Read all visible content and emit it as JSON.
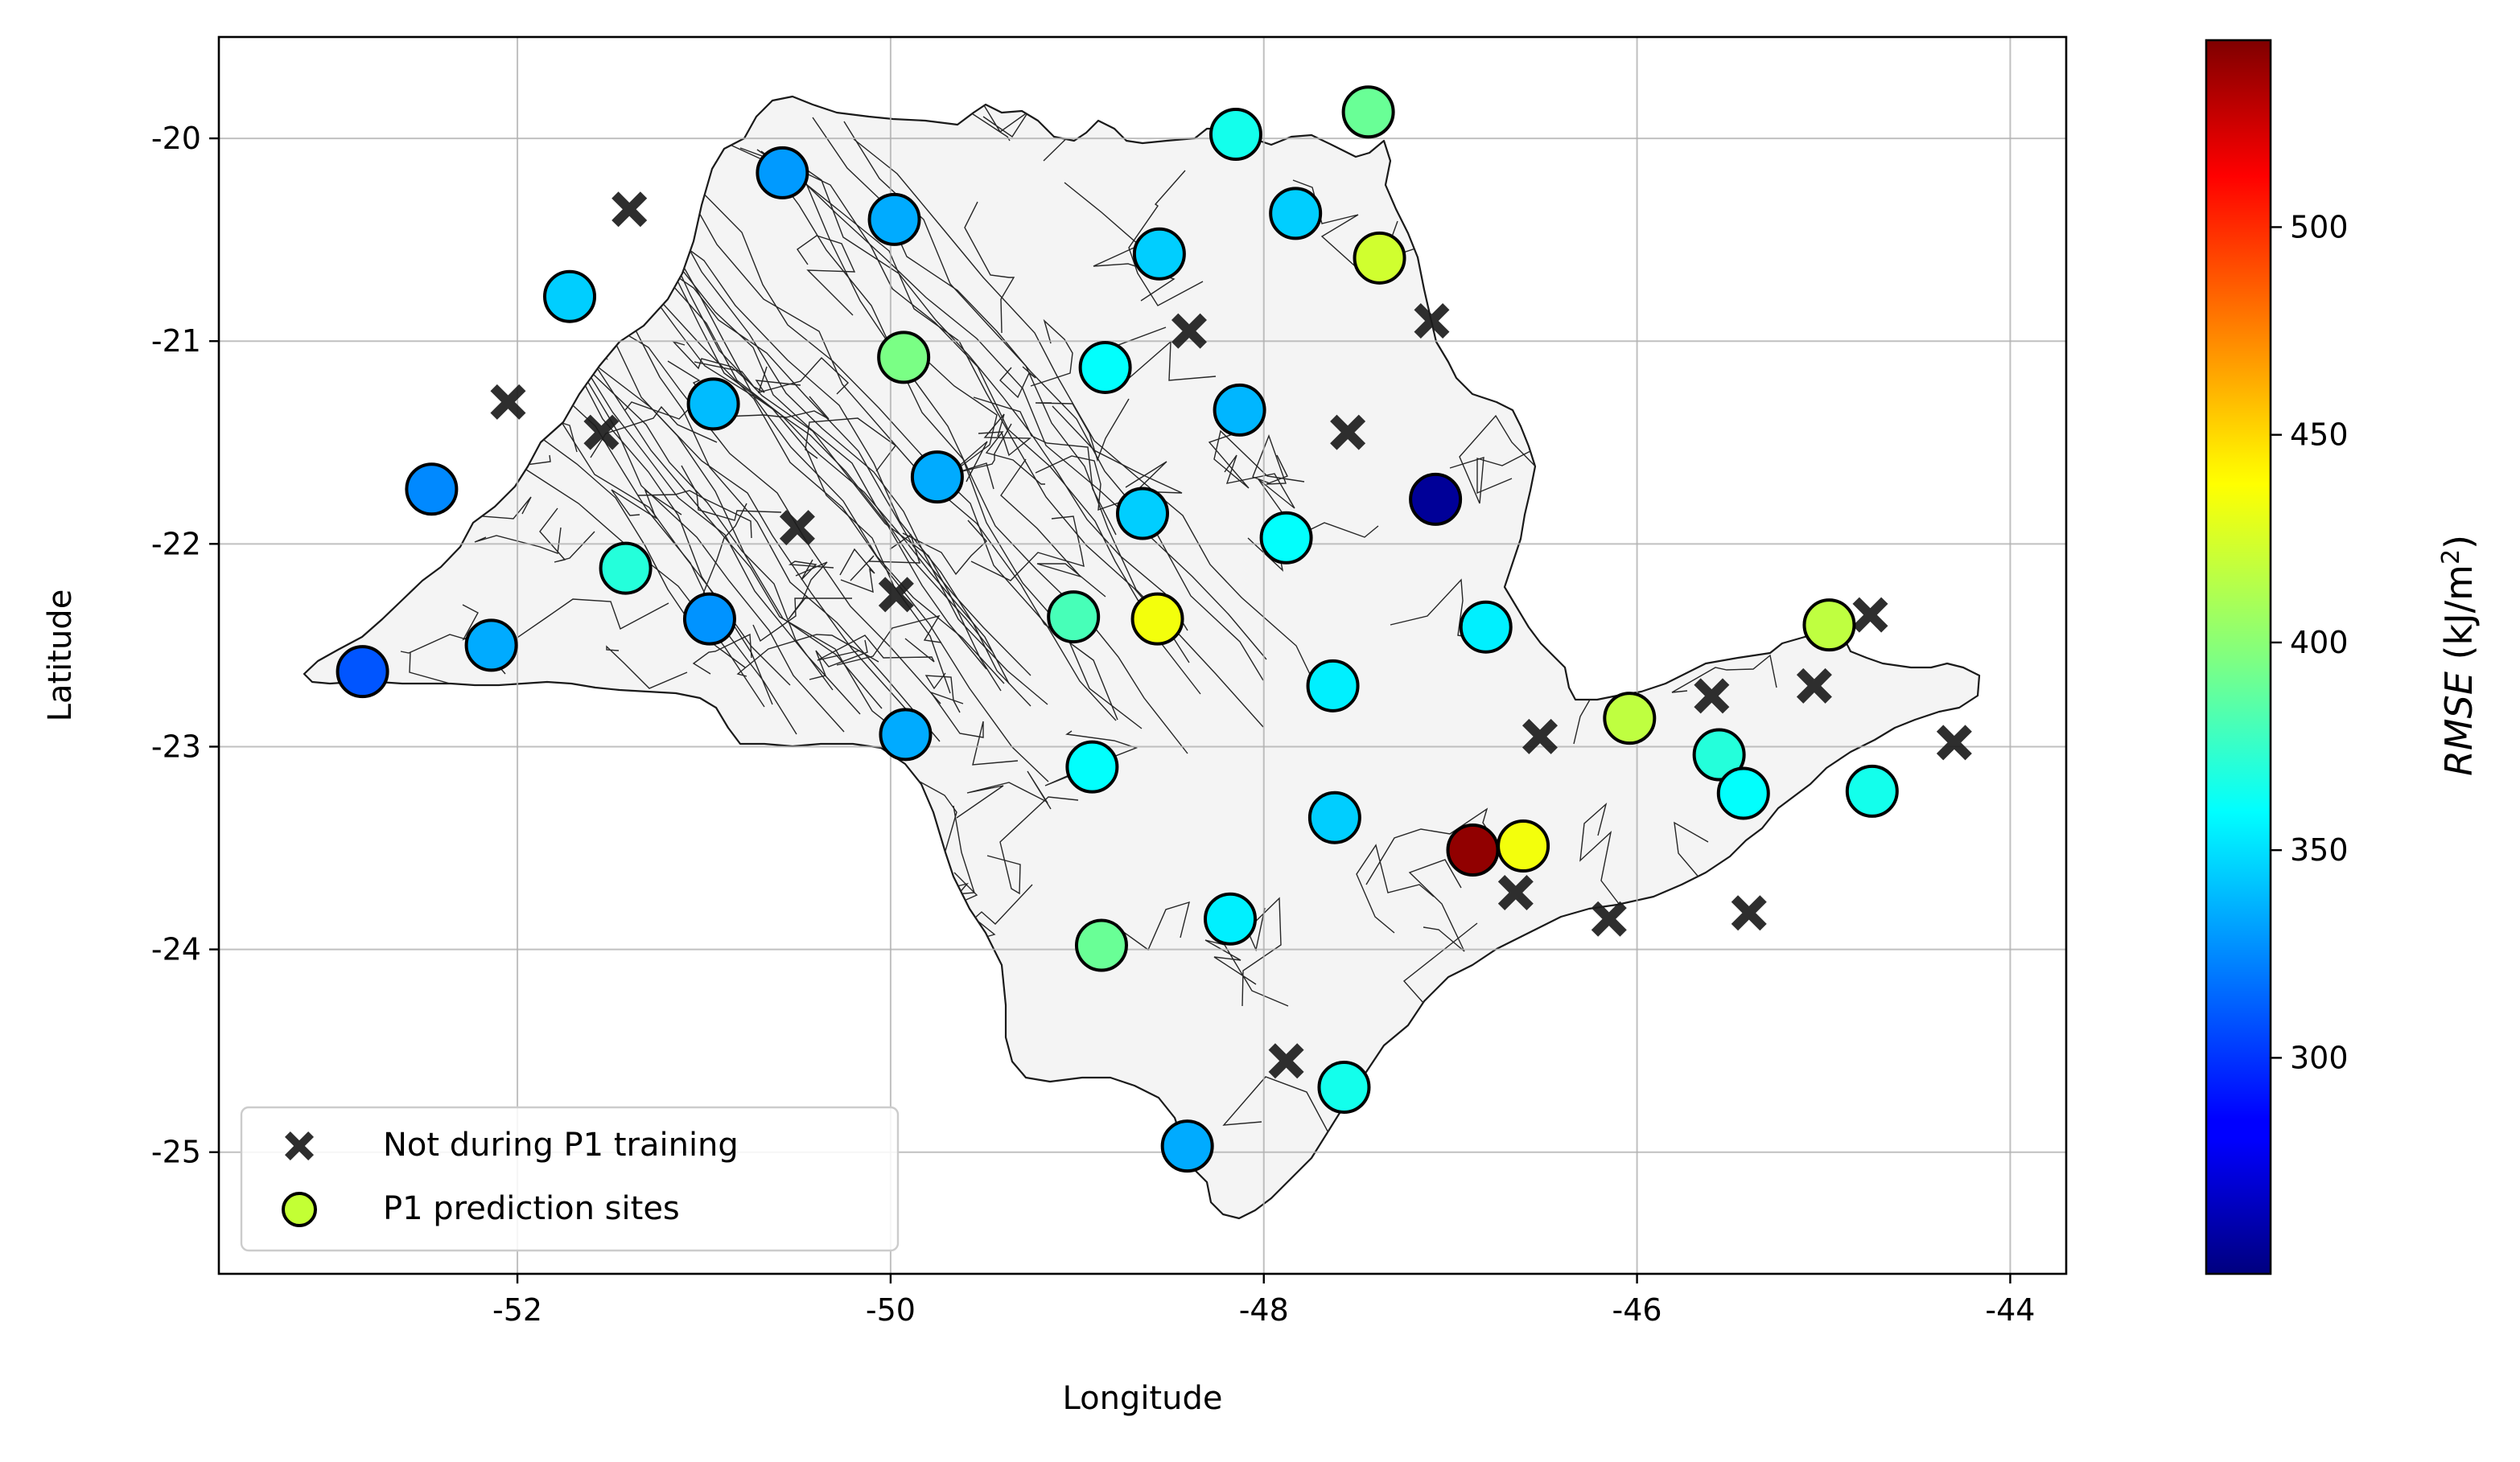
{
  "chart_data": {
    "type": "scatter",
    "xlabel": "Longitude",
    "ylabel": "Latitude",
    "xlim": [
      -53.6,
      -43.7
    ],
    "ylim": [
      -25.6,
      -19.5
    ],
    "xticks": [
      -52,
      -50,
      -48,
      -46,
      -44
    ],
    "yticks": [
      -20,
      -21,
      -22,
      -23,
      -24,
      -25
    ],
    "xtick_labels": [
      "-52",
      "-50",
      "-48",
      "-46",
      "-44"
    ],
    "ytick_labels": [
      "-20",
      "-21",
      "-22",
      "-23",
      "-24",
      "-25"
    ],
    "grid": true,
    "basemap": "Sao Paulo state municipality boundaries",
    "colorbar": {
      "label_var": "RMSE",
      "label_units_prefix": " (kJ/m",
      "label_units_sup": "2",
      "label_units_suffix": ")",
      "colormap": "jet",
      "range": [
        248,
        545
      ],
      "ticks": [
        300,
        350,
        400,
        450,
        500
      ],
      "tick_labels": [
        "300",
        "350",
        "400",
        "450",
        "500"
      ]
    },
    "legend": {
      "position": "lower-left",
      "entries": [
        {
          "label": "Not during P1 training",
          "marker": "x"
        },
        {
          "label": "P1 prediction sites",
          "marker": "circle",
          "color": "#c3ff34"
        }
      ]
    },
    "excluded_sites": [
      [
        -51.4,
        -20.35
      ],
      [
        -52.05,
        -21.3
      ],
      [
        -51.55,
        -21.45
      ],
      [
        -50.5,
        -21.92
      ],
      [
        -49.97,
        -22.25
      ],
      [
        -48.4,
        -20.95
      ],
      [
        -47.55,
        -21.45
      ],
      [
        -47.1,
        -20.9
      ],
      [
        -46.52,
        -22.95
      ],
      [
        -46.65,
        -23.72
      ],
      [
        -46.15,
        -23.85
      ],
      [
        -45.6,
        -22.75
      ],
      [
        -45.05,
        -22.7
      ],
      [
        -44.75,
        -22.35
      ],
      [
        -44.3,
        -22.98
      ],
      [
        -45.4,
        -23.82
      ],
      [
        -47.88,
        -24.55
      ]
    ],
    "sites": [
      {
        "lon": -52.83,
        "lat": -22.63,
        "rmse": 310
      },
      {
        "lon": -52.46,
        "lat": -21.73,
        "rmse": 325
      },
      {
        "lon": -52.14,
        "lat": -22.5,
        "rmse": 335
      },
      {
        "lon": -51.72,
        "lat": -20.78,
        "rmse": 345
      },
      {
        "lon": -51.42,
        "lat": -22.12,
        "rmse": 370
      },
      {
        "lon": -50.95,
        "lat": -21.31,
        "rmse": 340
      },
      {
        "lon": -50.97,
        "lat": -22.37,
        "rmse": 328
      },
      {
        "lon": -50.58,
        "lat": -20.17,
        "rmse": 330
      },
      {
        "lon": -49.98,
        "lat": -20.4,
        "rmse": 335
      },
      {
        "lon": -49.93,
        "lat": -21.08,
        "rmse": 395
      },
      {
        "lon": -49.75,
        "lat": -21.67,
        "rmse": 335
      },
      {
        "lon": -49.92,
        "lat": -22.94,
        "rmse": 335
      },
      {
        "lon": -49.02,
        "lat": -22.36,
        "rmse": 380
      },
      {
        "lon": -48.92,
        "lat": -23.1,
        "rmse": 360
      },
      {
        "lon": -48.85,
        "lat": -21.13,
        "rmse": 360
      },
      {
        "lon": -48.56,
        "lat": -20.57,
        "rmse": 345
      },
      {
        "lon": -48.65,
        "lat": -21.85,
        "rmse": 345
      },
      {
        "lon": -48.57,
        "lat": -22.37,
        "rmse": 430
      },
      {
        "lon": -48.87,
        "lat": -23.98,
        "rmse": 390
      },
      {
        "lon": -48.41,
        "lat": -24.97,
        "rmse": 335
      },
      {
        "lon": -48.15,
        "lat": -19.98,
        "rmse": 365
      },
      {
        "lon": -48.13,
        "lat": -21.34,
        "rmse": 338
      },
      {
        "lon": -47.88,
        "lat": -21.97,
        "rmse": 360
      },
      {
        "lon": -48.18,
        "lat": -23.85,
        "rmse": 355
      },
      {
        "lon": -47.83,
        "lat": -20.37,
        "rmse": 345
      },
      {
        "lon": -47.63,
        "lat": -22.7,
        "rmse": 355
      },
      {
        "lon": -47.62,
        "lat": -23.35,
        "rmse": 345
      },
      {
        "lon": -47.57,
        "lat": -24.68,
        "rmse": 365
      },
      {
        "lon": -47.44,
        "lat": -19.87,
        "rmse": 390
      },
      {
        "lon": -47.38,
        "lat": -20.59,
        "rmse": 420
      },
      {
        "lon": -47.08,
        "lat": -21.78,
        "rmse": 255
      },
      {
        "lon": -46.81,
        "lat": -22.41,
        "rmse": 355
      },
      {
        "lon": -46.88,
        "lat": -23.51,
        "rmse": 540
      },
      {
        "lon": -46.61,
        "lat": -23.49,
        "rmse": 430
      },
      {
        "lon": -46.04,
        "lat": -22.86,
        "rmse": 415
      },
      {
        "lon": -45.56,
        "lat": -23.04,
        "rmse": 370
      },
      {
        "lon": -45.43,
        "lat": -23.23,
        "rmse": 360
      },
      {
        "lon": -44.97,
        "lat": -22.4,
        "rmse": 415
      },
      {
        "lon": -44.74,
        "lat": -23.22,
        "rmse": 365
      }
    ]
  }
}
